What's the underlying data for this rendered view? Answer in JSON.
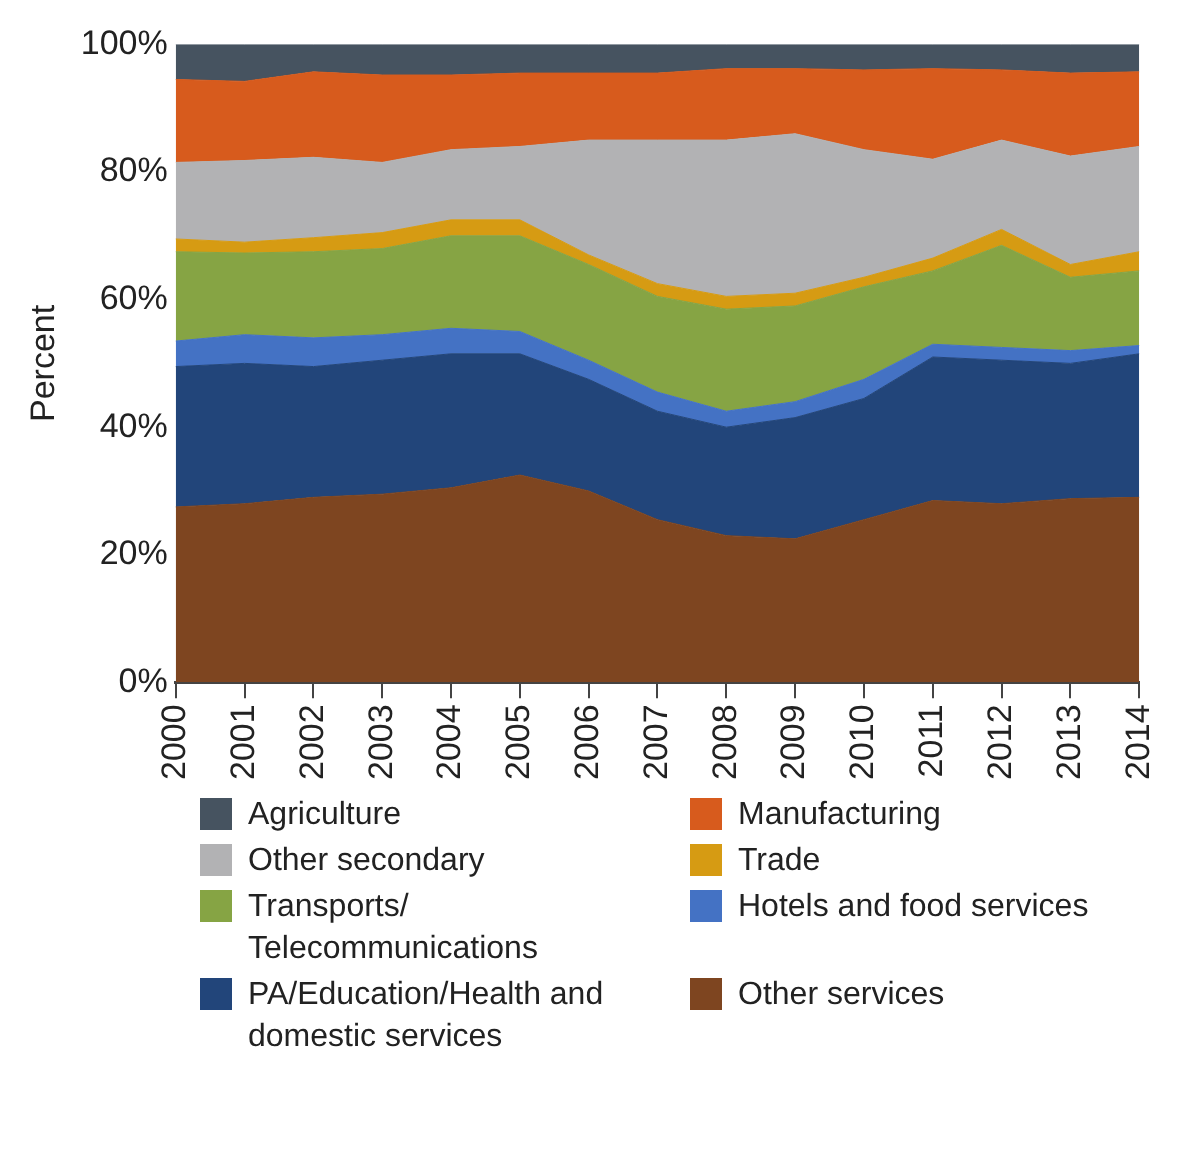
{
  "chart_data": {
    "type": "area",
    "stacked": true,
    "ylabel": "Percent",
    "categories": [
      "2000",
      "2001",
      "2002",
      "2003",
      "2004",
      "2005",
      "2006",
      "2007",
      "2008",
      "2009",
      "2010",
      "2011",
      "2012",
      "2013",
      "2014"
    ],
    "ylim": [
      0,
      100
    ],
    "yticks": [
      {
        "value": 0,
        "label": "0%"
      },
      {
        "value": 20,
        "label": "20%"
      },
      {
        "value": 40,
        "label": "40%"
      },
      {
        "value": 60,
        "label": "60%"
      },
      {
        "value": 80,
        "label": "80%"
      },
      {
        "value": 100,
        "label": "100%"
      }
    ],
    "grid": false,
    "legend": "bottom",
    "series": [
      {
        "name": "Other services",
        "color": "#7e4520",
        "values": [
          27.5,
          28,
          29,
          29.5,
          30.5,
          32.5,
          30,
          25.5,
          23,
          22.5,
          25.5,
          28.5,
          28,
          28.8,
          29
        ]
      },
      {
        "name": "PA/Education/Health and domestic services",
        "color": "#22457a",
        "values": [
          22,
          22,
          20.5,
          21,
          21,
          19,
          17.5,
          17,
          17,
          19,
          19,
          22.5,
          22.5,
          21.2,
          22.5
        ]
      },
      {
        "name": "Hotels and food services",
        "color": "#4472c4",
        "values": [
          4,
          4.5,
          4.5,
          4,
          4,
          3.5,
          3,
          3,
          2.5,
          2.5,
          3,
          2,
          2,
          2,
          1.3
        ]
      },
      {
        "name": "Transports/ Telecommunications",
        "color": "#86a444",
        "values": [
          14,
          12.8,
          13.5,
          13.5,
          14.5,
          15,
          15,
          15,
          16,
          15,
          14.5,
          11.5,
          16,
          11.5,
          11.7
        ]
      },
      {
        "name": "Trade",
        "color": "#d69b13",
        "values": [
          2,
          1.7,
          2.2,
          2.5,
          2.5,
          2.5,
          1.5,
          2,
          2,
          2,
          1.5,
          2,
          2.5,
          2,
          3
        ]
      },
      {
        "name": "Other secondary",
        "color": "#b2b2b4",
        "values": [
          12,
          12.8,
          12.6,
          11,
          11,
          11.5,
          18,
          22.5,
          24.5,
          25,
          20,
          15.5,
          14,
          17,
          16.5
        ]
      },
      {
        "name": "Manufacturing",
        "color": "#d75b1d",
        "values": [
          13,
          12.4,
          13.4,
          13.7,
          11.7,
          11.5,
          10.5,
          10.5,
          11.2,
          10.2,
          12.5,
          14.2,
          11,
          13,
          11.7
        ]
      },
      {
        "name": "Agriculture",
        "color": "#465360",
        "values": [
          5.5,
          5.8,
          4.3,
          4.8,
          4.8,
          4.5,
          4.5,
          4.5,
          3.8,
          3.8,
          4,
          3.8,
          4,
          4.5,
          4.3
        ]
      }
    ]
  }
}
